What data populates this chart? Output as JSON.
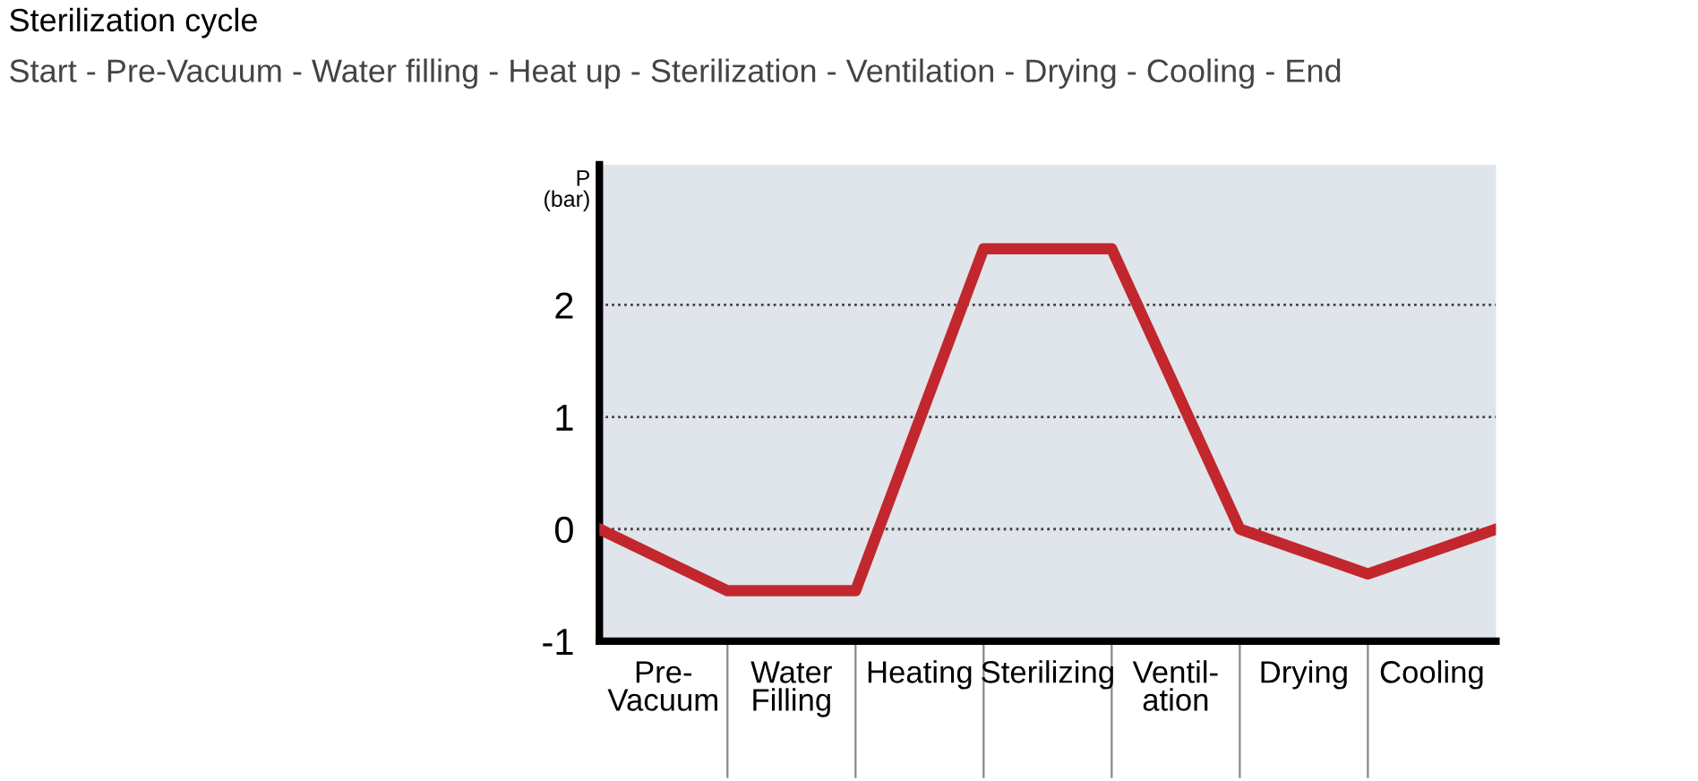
{
  "chart_data": {
    "type": "line",
    "title": "Sterilization cycle",
    "subtitle": "Start - Pre-Vacuum - Water filling - Heat up - Sterilization - Ventilation - Drying - Cooling - End",
    "ylabel": "P\n(bar)",
    "categories": [
      null,
      null,
      null,
      null,
      null,
      null,
      null,
      null
    ],
    "series": [
      {
        "color": "#c1272d",
        "values": [
          0,
          -0.55,
          -0.55,
          2.5,
          2.5,
          0,
          -0.4,
          0
        ]
      }
    ],
    "ylim": [
      -1,
      3.25
    ],
    "yticks": [
      -1,
      0,
      1,
      2
    ],
    "annotations": [
      "Pre-\nVacuum",
      "Water\nFilling",
      "Heating",
      "Sterilizing",
      "Ventil-\nation",
      "Drying",
      "Cooling"
    ],
    "grid": "y",
    "line_style": "solid",
    "marker": "none",
    "legend": false
  }
}
